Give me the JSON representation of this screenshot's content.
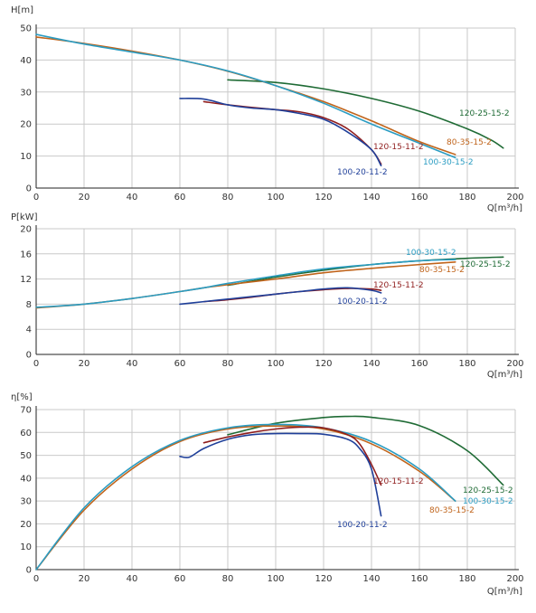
{
  "colors": {
    "120-25-15-2": "#1f6b35",
    "80-35-15-2": "#c0641b",
    "100-30-15-2": "#2a9cc2",
    "120-15-11-2": "#8f1d1d",
    "100-20-11-2": "#1f3f99"
  },
  "chart_data": [
    {
      "type": "line",
      "ylabel": "H[m]",
      "xlabel": "Q[m³/h]",
      "xlim": [
        0,
        200
      ],
      "ylim": [
        0,
        50
      ],
      "xticks": [
        0,
        20,
        40,
        60,
        80,
        100,
        120,
        140,
        160,
        180,
        200
      ],
      "yticks": [
        0,
        10,
        20,
        30,
        40,
        50
      ],
      "grid": true,
      "series": [
        {
          "name": "120-25-15-2",
          "x": [
            80,
            100,
            120,
            140,
            160,
            180,
            190,
            195
          ],
          "y": [
            33.8,
            33,
            31,
            28,
            24,
            18.5,
            15,
            12.5
          ]
        },
        {
          "name": "80-35-15-2",
          "x": [
            0,
            20,
            40,
            60,
            80,
            100,
            120,
            140,
            160,
            175
          ],
          "y": [
            47.2,
            45.2,
            42.8,
            40,
            36.5,
            32,
            27,
            21,
            14.5,
            10.5
          ]
        },
        {
          "name": "100-30-15-2",
          "x": [
            0,
            20,
            40,
            60,
            80,
            100,
            120,
            140,
            160,
            175
          ],
          "y": [
            48,
            45,
            42.5,
            40,
            36.6,
            32,
            26.5,
            20,
            14,
            9.5
          ]
        },
        {
          "name": "120-15-11-2",
          "x": [
            70,
            80,
            90,
            100,
            110,
            120,
            130,
            140,
            144
          ],
          "y": [
            27,
            26,
            25.2,
            24.5,
            23.8,
            22,
            18.5,
            12,
            7.5
          ]
        },
        {
          "name": "100-20-11-2",
          "x": [
            60,
            70,
            80,
            90,
            100,
            110,
            120,
            130,
            140,
            144
          ],
          "y": [
            28,
            27.8,
            26,
            25,
            24.5,
            23.3,
            21.5,
            17.5,
            12,
            7
          ]
        }
      ],
      "labels": [
        {
          "text": "120-25-15-2",
          "series": "120-25-15-2"
        },
        {
          "text": "80-35-15-2",
          "series": "80-35-15-2"
        },
        {
          "text": "100-30-15-2",
          "series": "100-30-15-2"
        },
        {
          "text": "120-15-11-2",
          "series": "120-15-11-2"
        },
        {
          "text": "100-20-11-2",
          "series": "100-20-11-2"
        }
      ]
    },
    {
      "type": "line",
      "ylabel": "P[kW]",
      "xlabel": "Q[m³/h]",
      "xlim": [
        0,
        200
      ],
      "ylim": [
        0,
        20
      ],
      "xticks": [
        0,
        20,
        40,
        60,
        80,
        100,
        120,
        140,
        160,
        180,
        200
      ],
      "yticks": [
        0,
        4,
        8,
        12,
        16,
        20
      ],
      "grid": true,
      "series": [
        {
          "name": "120-25-15-2",
          "x": [
            80,
            100,
            120,
            140,
            160,
            180,
            195
          ],
          "y": [
            11,
            12.3,
            13.4,
            14.3,
            14.9,
            15.3,
            15.5
          ]
        },
        {
          "name": "80-35-15-2",
          "x": [
            0,
            20,
            40,
            60,
            70,
            80,
            100,
            120,
            140,
            160,
            175
          ],
          "y": [
            7.4,
            8,
            8.9,
            10,
            10.6,
            11.1,
            12,
            13,
            13.7,
            14.3,
            14.7
          ]
        },
        {
          "name": "100-30-15-2",
          "x": [
            0,
            20,
            40,
            60,
            70,
            80,
            100,
            120,
            140,
            160,
            175
          ],
          "y": [
            7.5,
            8,
            8.9,
            10,
            10.6,
            11.3,
            12.5,
            13.6,
            14.3,
            14.9,
            15.1
          ]
        },
        {
          "name": "120-15-11-2",
          "x": [
            70,
            80,
            90,
            100,
            110,
            120,
            130,
            140,
            144
          ],
          "y": [
            8.4,
            8.7,
            9.1,
            9.6,
            10,
            10.3,
            10.5,
            10.4,
            10.2
          ]
        },
        {
          "name": "100-20-11-2",
          "x": [
            60,
            70,
            80,
            90,
            100,
            110,
            120,
            130,
            140,
            144
          ],
          "y": [
            8,
            8.4,
            8.8,
            9.2,
            9.6,
            10,
            10.4,
            10.6,
            10.2,
            9.8
          ]
        }
      ],
      "labels": [
        {
          "text": "100-30-15-2",
          "series": "100-30-15-2"
        },
        {
          "text": "120-25-15-2",
          "series": "120-25-15-2"
        },
        {
          "text": "80-35-15-2",
          "series": "80-35-15-2"
        },
        {
          "text": "120-15-11-2",
          "series": "120-15-11-2"
        },
        {
          "text": "100-20-11-2",
          "series": "100-20-11-2"
        }
      ]
    },
    {
      "type": "line",
      "ylabel": "η[%]",
      "xlabel": "Q[m³/h]",
      "xlim": [
        0,
        200
      ],
      "ylim": [
        0,
        70
      ],
      "xticks": [
        0,
        20,
        40,
        60,
        80,
        100,
        120,
        140,
        160,
        180,
        200
      ],
      "yticks": [
        0,
        10,
        20,
        30,
        40,
        50,
        60,
        70
      ],
      "grid": true,
      "series": [
        {
          "name": "120-25-15-2",
          "x": [
            80,
            100,
            120,
            130,
            140,
            160,
            180,
            195
          ],
          "y": [
            59,
            64,
            66.5,
            67,
            66.6,
            63,
            52,
            37
          ]
        },
        {
          "name": "80-35-15-2",
          "x": [
            0,
            20,
            40,
            60,
            80,
            100,
            120,
            140,
            160,
            175
          ],
          "y": [
            0,
            26,
            44,
            56,
            61.5,
            62.8,
            61.5,
            55,
            43,
            30
          ]
        },
        {
          "name": "100-30-15-2",
          "x": [
            0,
            20,
            40,
            60,
            80,
            100,
            120,
            140,
            160,
            175
          ],
          "y": [
            0,
            27,
            45,
            56.5,
            62,
            63.5,
            62,
            56,
            44,
            30
          ]
        },
        {
          "name": "120-15-11-2",
          "x": [
            70,
            80,
            90,
            100,
            110,
            120,
            130,
            135,
            140,
            144
          ],
          "y": [
            55.5,
            58,
            60,
            61.5,
            62.3,
            62,
            59,
            55,
            46,
            37
          ]
        },
        {
          "name": "100-20-11-2",
          "x": [
            60,
            64,
            70,
            80,
            90,
            100,
            110,
            120,
            130,
            135,
            140,
            144
          ],
          "y": [
            49.5,
            49.2,
            53,
            57,
            59,
            59.5,
            59.5,
            59.2,
            57,
            53,
            44,
            23.5
          ]
        }
      ],
      "labels": [
        {
          "text": "120-15-11-2",
          "series": "120-15-11-2"
        },
        {
          "text": "120-25-15-2",
          "series": "120-25-15-2"
        },
        {
          "text": "100-30-15-2",
          "series": "100-30-15-2"
        },
        {
          "text": "80-35-15-2",
          "series": "80-35-15-2"
        },
        {
          "text": "100-20-11-2",
          "series": "100-20-11-2"
        }
      ]
    }
  ]
}
